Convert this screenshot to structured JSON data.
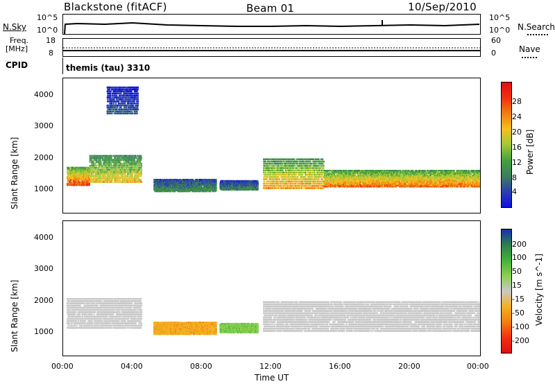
{
  "header": {
    "radar": "Blackstone (fitACF)",
    "beam": "Beam 01",
    "date": "10/Sep/2010"
  },
  "noise_panel": {
    "left_label": "N.Sky",
    "right_label": "N.Search",
    "left_ticks": [
      "10^5",
      "10^0"
    ],
    "right_ticks": [
      "10^5",
      "10^0"
    ]
  },
  "freq_panel": {
    "left_label_1": "Freq.",
    "left_label_2": "[MHz]",
    "right_label": "Nave",
    "left_ticks": [
      "18",
      "8"
    ],
    "right_ticks": [
      "60",
      "0"
    ]
  },
  "cpid": {
    "label": "CPID",
    "value": "themis (tau) 3310"
  },
  "x_axis": {
    "label": "Time UT",
    "ticks": [
      "00:00",
      "04:00",
      "08:00",
      "12:00",
      "16:00",
      "20:00",
      "00:00"
    ]
  },
  "chart_data": [
    {
      "type": "heatmap",
      "title": "",
      "ylabel": "Slant Range [km]",
      "xlabel": "",
      "xlim": [
        0,
        24
      ],
      "ylim": [
        180,
        4500
      ],
      "yticks": [
        1000,
        2000,
        3000,
        4000
      ],
      "colorbar": {
        "label": "Power [dB]",
        "range": [
          0,
          32
        ],
        "ticks": [
          "4",
          "8",
          "12",
          "16",
          "20",
          "24",
          "28"
        ],
        "colors": [
          "#1010e0",
          "#2a3fb0",
          "#3d7f5a",
          "#44a040",
          "#a0c838",
          "#f4c020",
          "#f08010",
          "#f03010",
          "#e01010"
        ]
      },
      "echo_regions": [
        {
          "t_start": 0.2,
          "t_end": 1.5,
          "range_low": 1100,
          "range_high": 1700,
          "level_db": 24
        },
        {
          "t_start": 1.5,
          "t_end": 4.5,
          "range_low": 1200,
          "range_high": 2100,
          "level_db": 18
        },
        {
          "t_start": 2.5,
          "t_end": 4.3,
          "range_low": 3400,
          "range_high": 4300,
          "level_db": 6
        },
        {
          "t_start": 5.2,
          "t_end": 8.8,
          "range_low": 900,
          "range_high": 1300,
          "level_db": 10
        },
        {
          "t_start": 9.0,
          "t_end": 11.2,
          "range_low": 950,
          "range_high": 1250,
          "level_db": 9
        },
        {
          "t_start": 11.5,
          "t_end": 15.0,
          "range_low": 1000,
          "range_high": 2000,
          "level_db": 20
        },
        {
          "t_start": 15.0,
          "t_end": 24.0,
          "range_low": 1050,
          "range_high": 1600,
          "level_db": 22
        }
      ]
    },
    {
      "type": "heatmap",
      "title": "",
      "ylabel": "Slant Range [km]",
      "xlabel": "Time UT",
      "xlim": [
        0,
        24
      ],
      "ylim": [
        180,
        4500
      ],
      "yticks": [
        1000,
        2000,
        3000,
        4000
      ],
      "colorbar": {
        "label": "Velocity [m s^-1]",
        "ticks": [
          "200",
          "100",
          "50",
          "15",
          "-15",
          "-50",
          "-100",
          "-200"
        ],
        "colors": [
          "#1c2fb0",
          "#2d7f4e",
          "#44b038",
          "#8ad050",
          "#c8c8c8",
          "#f4b020",
          "#f08010",
          "#f03010",
          "#e01010"
        ]
      },
      "echo_regions": [
        {
          "t_start": 0.2,
          "t_end": 4.5,
          "range_low": 1100,
          "range_high": 2100,
          "velocity": 0
        },
        {
          "t_start": 5.2,
          "t_end": 8.8,
          "range_low": 900,
          "range_high": 1300,
          "velocity": -40
        },
        {
          "t_start": 9.0,
          "t_end": 11.2,
          "range_low": 950,
          "range_high": 1250,
          "velocity": 40
        },
        {
          "t_start": 11.5,
          "t_end": 24.0,
          "range_low": 1000,
          "range_high": 2000,
          "velocity": 0
        }
      ]
    }
  ]
}
